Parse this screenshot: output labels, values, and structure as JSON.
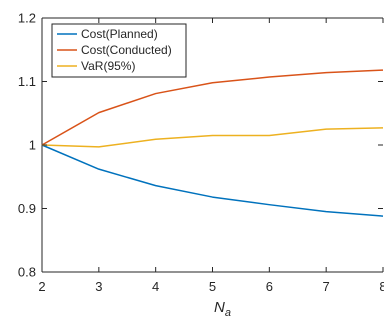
{
  "chart_data": {
    "type": "line",
    "x": [
      2,
      3,
      4,
      5,
      6,
      7,
      8
    ],
    "series": [
      {
        "name": "Cost(Planned)",
        "color": "#0072BD",
        "values": [
          1.0,
          0.962,
          0.936,
          0.918,
          0.906,
          0.895,
          0.888
        ]
      },
      {
        "name": "Cost(Conducted)",
        "color": "#D95319",
        "values": [
          1.0,
          1.051,
          1.081,
          1.098,
          1.107,
          1.114,
          1.118
        ]
      },
      {
        "name": "VaR(95%)",
        "color": "#EDB120",
        "values": [
          1.0,
          0.997,
          1.009,
          1.015,
          1.015,
          1.025,
          1.027
        ]
      }
    ],
    "xlim": [
      2,
      8
    ],
    "ylim": [
      0.8,
      1.2
    ],
    "xticks": [
      "2",
      "3",
      "4",
      "5",
      "6",
      "7",
      "8"
    ],
    "yticks": [
      "0.8",
      "0.9",
      "1",
      "1.1",
      "1.2"
    ],
    "xlabel": "N",
    "xlabel_subscript": "a",
    "ylabel": "",
    "title": "",
    "grid": false,
    "legend_position": "top-left"
  }
}
